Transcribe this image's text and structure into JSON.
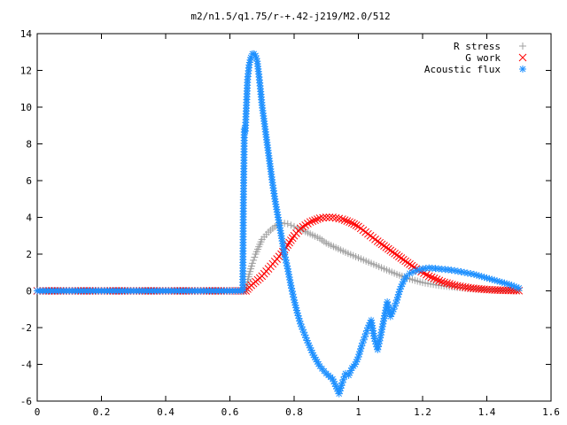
{
  "chart_data": {
    "type": "scatter",
    "title": "m2/n1.5/q1.75/r-+.42-j219/M2.0/512",
    "xlim": [
      0,
      1.6
    ],
    "ylim": [
      -6,
      14
    ],
    "x_ticks": [
      0,
      0.2,
      0.4,
      0.6,
      0.8,
      1,
      1.2,
      1.4,
      1.6
    ],
    "y_ticks": [
      -6,
      -4,
      -2,
      0,
      2,
      4,
      6,
      8,
      10,
      12,
      14
    ],
    "x_tick_labels": [
      "0",
      "0.2",
      "0.4",
      "0.6",
      "0.8",
      "1",
      "1.2",
      "1.4",
      "1.6"
    ],
    "y_tick_labels": [
      "-6",
      "-4",
      "-2",
      "0",
      "2",
      "4",
      "6",
      "8",
      "10",
      "12",
      "14"
    ],
    "grid": false,
    "legend_position": "top-right",
    "series": [
      {
        "name": "R stress",
        "marker": "plus",
        "color": "#a0a0a0",
        "points": [
          [
            0.0,
            0
          ],
          [
            0.1,
            0
          ],
          [
            0.2,
            0
          ],
          [
            0.3,
            0
          ],
          [
            0.4,
            0
          ],
          [
            0.5,
            0
          ],
          [
            0.6,
            0
          ],
          [
            0.65,
            0
          ],
          [
            0.655,
            0.5
          ],
          [
            0.66,
            0.9
          ],
          [
            0.67,
            1.5
          ],
          [
            0.68,
            2.0
          ],
          [
            0.69,
            2.4
          ],
          [
            0.7,
            2.8
          ],
          [
            0.72,
            3.2
          ],
          [
            0.74,
            3.5
          ],
          [
            0.76,
            3.7
          ],
          [
            0.78,
            3.65
          ],
          [
            0.8,
            3.5
          ],
          [
            0.82,
            3.35
          ],
          [
            0.85,
            3.1
          ],
          [
            0.88,
            2.85
          ],
          [
            0.9,
            2.6
          ],
          [
            0.93,
            2.35
          ],
          [
            0.96,
            2.1
          ],
          [
            1.0,
            1.8
          ],
          [
            1.04,
            1.5
          ],
          [
            1.08,
            1.2
          ],
          [
            1.12,
            0.9
          ],
          [
            1.16,
            0.65
          ],
          [
            1.2,
            0.45
          ],
          [
            1.25,
            0.3
          ],
          [
            1.3,
            0.2
          ],
          [
            1.35,
            0.12
          ],
          [
            1.4,
            0.07
          ],
          [
            1.45,
            0.03
          ],
          [
            1.5,
            0.01
          ]
        ]
      },
      {
        "name": "G work",
        "marker": "cross",
        "color": "#ff0000",
        "points": [
          [
            0.0,
            0
          ],
          [
            0.1,
            0
          ],
          [
            0.2,
            0
          ],
          [
            0.3,
            0
          ],
          [
            0.4,
            0
          ],
          [
            0.5,
            0
          ],
          [
            0.6,
            0
          ],
          [
            0.65,
            0
          ],
          [
            0.66,
            0.2
          ],
          [
            0.68,
            0.5
          ],
          [
            0.7,
            0.8
          ],
          [
            0.72,
            1.2
          ],
          [
            0.74,
            1.6
          ],
          [
            0.76,
            2.0
          ],
          [
            0.78,
            2.5
          ],
          [
            0.8,
            3.0
          ],
          [
            0.82,
            3.4
          ],
          [
            0.85,
            3.75
          ],
          [
            0.88,
            3.95
          ],
          [
            0.9,
            4.0
          ],
          [
            0.92,
            4.0
          ],
          [
            0.95,
            3.9
          ],
          [
            0.98,
            3.7
          ],
          [
            1.0,
            3.5
          ],
          [
            1.03,
            3.1
          ],
          [
            1.06,
            2.7
          ],
          [
            1.1,
            2.2
          ],
          [
            1.14,
            1.7
          ],
          [
            1.18,
            1.2
          ],
          [
            1.22,
            0.8
          ],
          [
            1.26,
            0.5
          ],
          [
            1.3,
            0.3
          ],
          [
            1.35,
            0.15
          ],
          [
            1.4,
            0.07
          ],
          [
            1.45,
            0.03
          ],
          [
            1.5,
            0.01
          ]
        ]
      },
      {
        "name": "Acoustic flux",
        "marker": "star",
        "color": "#1e90ff",
        "points": [
          [
            0.0,
            0
          ],
          [
            0.05,
            0
          ],
          [
            0.1,
            0
          ],
          [
            0.15,
            0
          ],
          [
            0.2,
            0
          ],
          [
            0.25,
            0
          ],
          [
            0.3,
            0
          ],
          [
            0.35,
            0
          ],
          [
            0.4,
            0
          ],
          [
            0.45,
            0
          ],
          [
            0.5,
            0
          ],
          [
            0.55,
            0
          ],
          [
            0.6,
            0
          ],
          [
            0.64,
            0
          ],
          [
            0.642,
            4.8
          ],
          [
            0.645,
            8.8
          ],
          [
            0.648,
            8.7
          ],
          [
            0.655,
            11.5
          ],
          [
            0.66,
            12.3
          ],
          [
            0.665,
            12.7
          ],
          [
            0.67,
            12.9
          ],
          [
            0.675,
            12.9
          ],
          [
            0.68,
            12.8
          ],
          [
            0.685,
            12.5
          ],
          [
            0.69,
            11.8
          ],
          [
            0.695,
            11.0
          ],
          [
            0.7,
            10.1
          ],
          [
            0.71,
            8.8
          ],
          [
            0.72,
            7.5
          ],
          [
            0.73,
            6.2
          ],
          [
            0.74,
            5.0
          ],
          [
            0.75,
            4.0
          ],
          [
            0.76,
            3.0
          ],
          [
            0.77,
            2.0
          ],
          [
            0.78,
            1.2
          ],
          [
            0.79,
            0.3
          ],
          [
            0.8,
            -0.5
          ],
          [
            0.81,
            -1.2
          ],
          [
            0.82,
            -1.8
          ],
          [
            0.84,
            -2.7
          ],
          [
            0.86,
            -3.5
          ],
          [
            0.88,
            -4.1
          ],
          [
            0.9,
            -4.5
          ],
          [
            0.92,
            -4.8
          ],
          [
            0.93,
            -5.2
          ],
          [
            0.94,
            -5.6
          ],
          [
            0.95,
            -5.0
          ],
          [
            0.96,
            -4.5
          ],
          [
            0.97,
            -4.6
          ],
          [
            0.98,
            -4.2
          ],
          [
            0.99,
            -4.0
          ],
          [
            1.0,
            -3.6
          ],
          [
            1.01,
            -3.0
          ],
          [
            1.02,
            -2.5
          ],
          [
            1.03,
            -2.0
          ],
          [
            1.04,
            -1.6
          ],
          [
            1.05,
            -2.6
          ],
          [
            1.06,
            -3.2
          ],
          [
            1.07,
            -2.4
          ],
          [
            1.08,
            -1.5
          ],
          [
            1.09,
            -0.6
          ],
          [
            1.1,
            -1.4
          ],
          [
            1.11,
            -1.0
          ],
          [
            1.12,
            -0.5
          ],
          [
            1.13,
            0.1
          ],
          [
            1.14,
            0.5
          ],
          [
            1.15,
            0.8
          ],
          [
            1.16,
            0.95
          ],
          [
            1.18,
            1.1
          ],
          [
            1.2,
            1.2
          ],
          [
            1.22,
            1.25
          ],
          [
            1.25,
            1.2
          ],
          [
            1.28,
            1.15
          ],
          [
            1.3,
            1.1
          ],
          [
            1.33,
            1.0
          ],
          [
            1.36,
            0.9
          ],
          [
            1.4,
            0.7
          ],
          [
            1.44,
            0.5
          ],
          [
            1.47,
            0.35
          ],
          [
            1.5,
            0.15
          ]
        ]
      }
    ]
  }
}
